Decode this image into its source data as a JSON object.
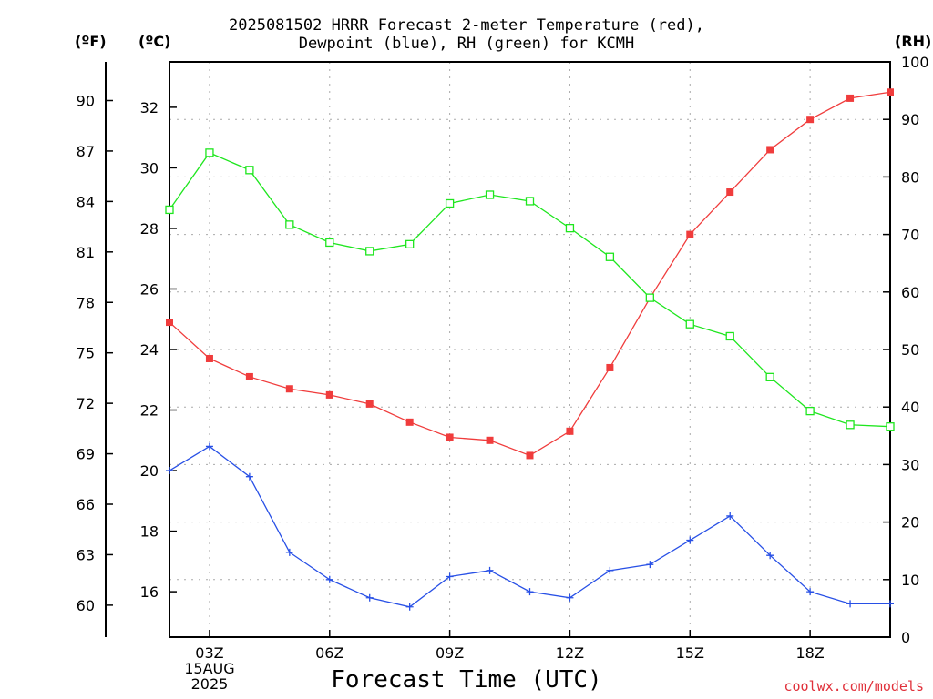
{
  "chart_data": {
    "type": "line",
    "title": [
      "2025081502 HRRR Forecast 2-meter Temperature (red),",
      "Dewpoint (blue), RH (green) for KCMH"
    ],
    "units": {
      "fahrenheit": "(ºF)",
      "celsius": "(ºC)",
      "rh": "(RH)"
    },
    "xlabel": "Forecast Time (UTC)",
    "credit": "coolwx.com/models",
    "x": [
      2,
      3,
      4,
      5,
      6,
      7,
      8,
      9,
      10,
      11,
      12,
      13,
      14,
      15,
      16,
      17,
      18,
      19,
      20
    ],
    "x_ticks": [
      {
        "x": 3,
        "lines": [
          "03Z",
          "15AUG",
          "2025"
        ]
      },
      {
        "x": 6,
        "lines": [
          "06Z"
        ]
      },
      {
        "x": 9,
        "lines": [
          "09Z"
        ]
      },
      {
        "x": 12,
        "lines": [
          "12Z"
        ]
      },
      {
        "x": 15,
        "lines": [
          "15Z"
        ]
      },
      {
        "x": 18,
        "lines": [
          "18Z"
        ]
      }
    ],
    "xlim": [
      2,
      20
    ],
    "celsius_axis": {
      "ticks": [
        16,
        18,
        20,
        22,
        24,
        26,
        28,
        30,
        32
      ],
      "ylim": [
        14.5,
        33.5
      ]
    },
    "fahrenheit_axis": {
      "ticks": [
        60,
        63,
        66,
        69,
        72,
        75,
        78,
        81,
        84,
        87,
        90
      ]
    },
    "rh_axis": {
      "ticks": [
        0,
        10,
        20,
        30,
        40,
        50,
        60,
        70,
        80,
        90,
        100
      ],
      "ylim": [
        0,
        100
      ]
    },
    "grid": true,
    "series": [
      {
        "name": "Temperature",
        "axis": "celsius",
        "color": "#f03c3c",
        "marker": "filled-square",
        "values": [
          24.9,
          23.7,
          23.1,
          22.7,
          22.5,
          22.2,
          21.6,
          21.1,
          21.0,
          20.5,
          21.3,
          23.4,
          25.7,
          27.8,
          29.2,
          30.6,
          31.6,
          32.3,
          32.5
        ]
      },
      {
        "name": "Dewpoint",
        "axis": "celsius",
        "color": "#2850e6",
        "marker": "plus",
        "values": [
          20.0,
          20.8,
          19.8,
          17.3,
          16.4,
          15.8,
          15.5,
          16.5,
          16.7,
          16.0,
          15.8,
          16.7,
          16.9,
          17.7,
          18.5,
          17.2,
          16.0,
          15.6,
          15.6
        ]
      },
      {
        "name": "RH",
        "axis": "rh",
        "color": "#1ee61e",
        "marker": "open-square",
        "values": [
          74.3,
          84.2,
          81.2,
          71.7,
          68.6,
          67.1,
          68.3,
          75.4,
          76.9,
          75.8,
          71.1,
          66.1,
          59.0,
          54.4,
          52.3,
          45.2,
          39.3,
          36.9,
          36.6
        ]
      }
    ]
  }
}
